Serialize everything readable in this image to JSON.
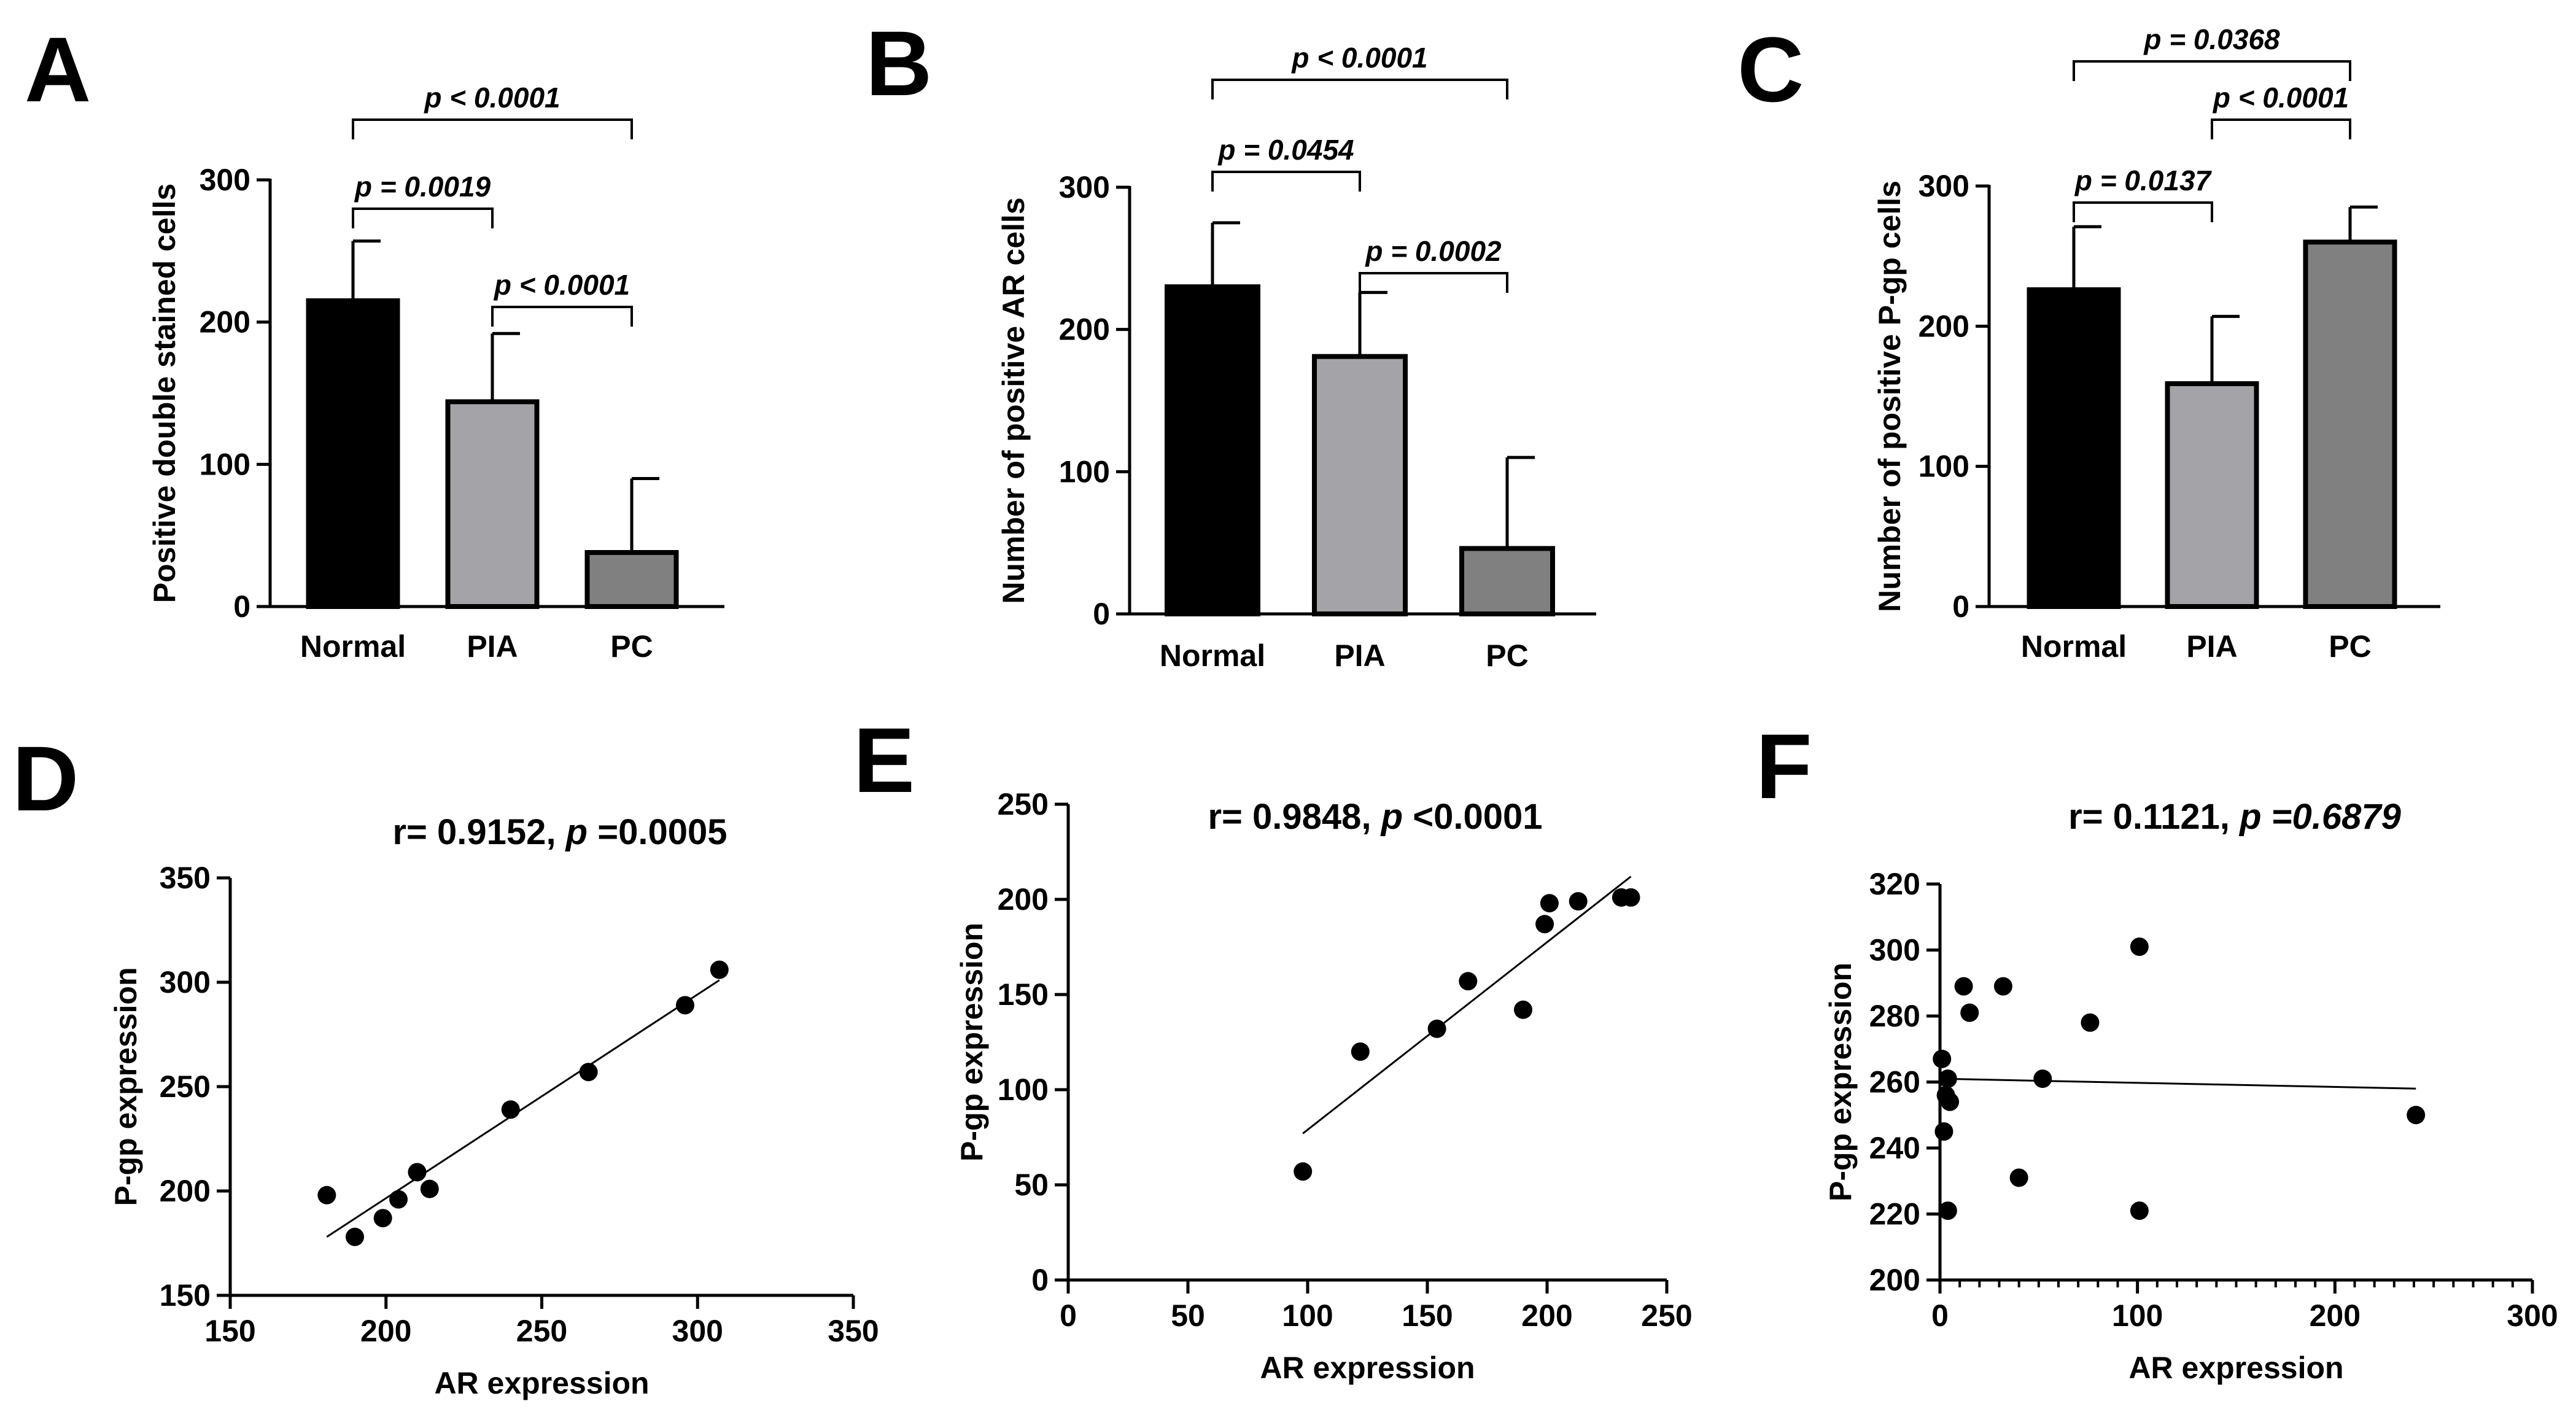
{
  "figure": {
    "panel_letters": [
      "A",
      "B",
      "C",
      "D",
      "E",
      "F"
    ]
  },
  "chart_data": [
    {
      "panel": "A",
      "type": "bar",
      "categories": [
        "Normal",
        "PIA",
        "PC"
      ],
      "values": [
        215,
        144,
        38
      ],
      "errors": [
        42,
        48,
        52
      ],
      "bar_colors": [
        "#000000",
        "#a3a3a8",
        "#808080"
      ],
      "title": "",
      "xlabel": "",
      "ylabel": "Positive double stained cells",
      "ylim": [
        0,
        300
      ],
      "yticks": [
        0,
        100,
        200,
        300
      ],
      "significance": [
        {
          "from": 0,
          "to": 2,
          "label": "p < 0.0001"
        },
        {
          "from": 0,
          "to": 1,
          "label": "p = 0.0019"
        },
        {
          "from": 1,
          "to": 2,
          "label": "p < 0.0001"
        }
      ]
    },
    {
      "panel": "B",
      "type": "bar",
      "categories": [
        "Normal",
        "PIA",
        "PC"
      ],
      "values": [
        230,
        181,
        46
      ],
      "errors": [
        45,
        45,
        64
      ],
      "bar_colors": [
        "#000000",
        "#a3a3a8",
        "#808080"
      ],
      "title": "",
      "xlabel": "",
      "ylabel": "Number of positive  AR cells",
      "ylim": [
        0,
        300
      ],
      "yticks": [
        0,
        100,
        200,
        300
      ],
      "significance": [
        {
          "from": 0,
          "to": 2,
          "label": "p < 0.0001"
        },
        {
          "from": 0,
          "to": 1,
          "label": "p = 0.0454"
        },
        {
          "from": 1,
          "to": 2,
          "label": "p = 0.0002"
        }
      ]
    },
    {
      "panel": "C",
      "type": "bar",
      "categories": [
        "Normal",
        "PIA",
        "PC"
      ],
      "values": [
        226,
        159,
        260
      ],
      "errors": [
        45,
        48,
        25
      ],
      "bar_colors": [
        "#000000",
        "#a3a3a8",
        "#808080"
      ],
      "title": "",
      "xlabel": "",
      "ylabel": "Number of positive P-gp cells",
      "ylim": [
        0,
        300
      ],
      "yticks": [
        0,
        100,
        200,
        300
      ],
      "significance": [
        {
          "from": 0,
          "to": 2,
          "label": "p = 0.0368"
        },
        {
          "from": 1,
          "to": 2,
          "label": "p < 0.0001"
        },
        {
          "from": 0,
          "to": 1,
          "label": "p = 0.0137"
        }
      ]
    },
    {
      "panel": "D",
      "type": "scatter",
      "title_parts": [
        "r= 0.9152, ",
        "p",
        " =0.0005"
      ],
      "xlabel": "AR expression",
      "ylabel": "P-gp expression",
      "xlim": [
        150,
        350
      ],
      "ylim": [
        150,
        350
      ],
      "xticks": [
        150,
        200,
        250,
        300,
        350
      ],
      "yticks": [
        150,
        200,
        250,
        300,
        350
      ],
      "x": [
        181,
        190,
        199,
        204,
        210,
        214,
        240,
        265,
        296,
        307
      ],
      "y": [
        198,
        178,
        187,
        196,
        209,
        201,
        239,
        257,
        289,
        306
      ],
      "fit_line": {
        "x": [
          181,
          307
        ],
        "y": [
          178,
          301
        ]
      }
    },
    {
      "panel": "E",
      "type": "scatter",
      "title_parts": [
        "r= 0.9848, ",
        "p",
        " <0.0001"
      ],
      "xlabel": "AR expression",
      "ylabel": "P-gp expression",
      "xlim": [
        0,
        250
      ],
      "ylim": [
        0,
        250
      ],
      "xticks": [
        0,
        50,
        100,
        150,
        200,
        250
      ],
      "yticks": [
        0,
        50,
        100,
        150,
        200,
        250
      ],
      "x": [
        98,
        122,
        154,
        167,
        190,
        199,
        201,
        213,
        231,
        235
      ],
      "y": [
        57,
        120,
        132,
        157,
        142,
        187,
        198,
        199,
        201,
        201
      ],
      "fit_line": {
        "x": [
          98,
          235
        ],
        "y": [
          77,
          212
        ]
      }
    },
    {
      "panel": "F",
      "type": "scatter",
      "title_parts": [
        "r= 0.1121, ",
        "p",
        " =0.6879"
      ],
      "title_value_italic": true,
      "xlabel": "AR expression",
      "ylabel": "P-gp expression",
      "xlim": [
        0,
        300
      ],
      "ylim": [
        200,
        320
      ],
      "xticks": [
        0,
        100,
        200,
        300
      ],
      "yticks": [
        200,
        220,
        240,
        260,
        280,
        300,
        320
      ],
      "minor_x_step": 10,
      "x": [
        1,
        2,
        3,
        4,
        4,
        5,
        12,
        15,
        32,
        40,
        52,
        76,
        101,
        101,
        241
      ],
      "y": [
        267,
        245,
        256,
        261,
        221,
        254,
        289,
        281,
        289,
        231,
        261,
        278,
        301,
        221,
        250
      ],
      "fit_line": {
        "x": [
          0,
          241
        ],
        "y": [
          261,
          258
        ]
      }
    }
  ]
}
